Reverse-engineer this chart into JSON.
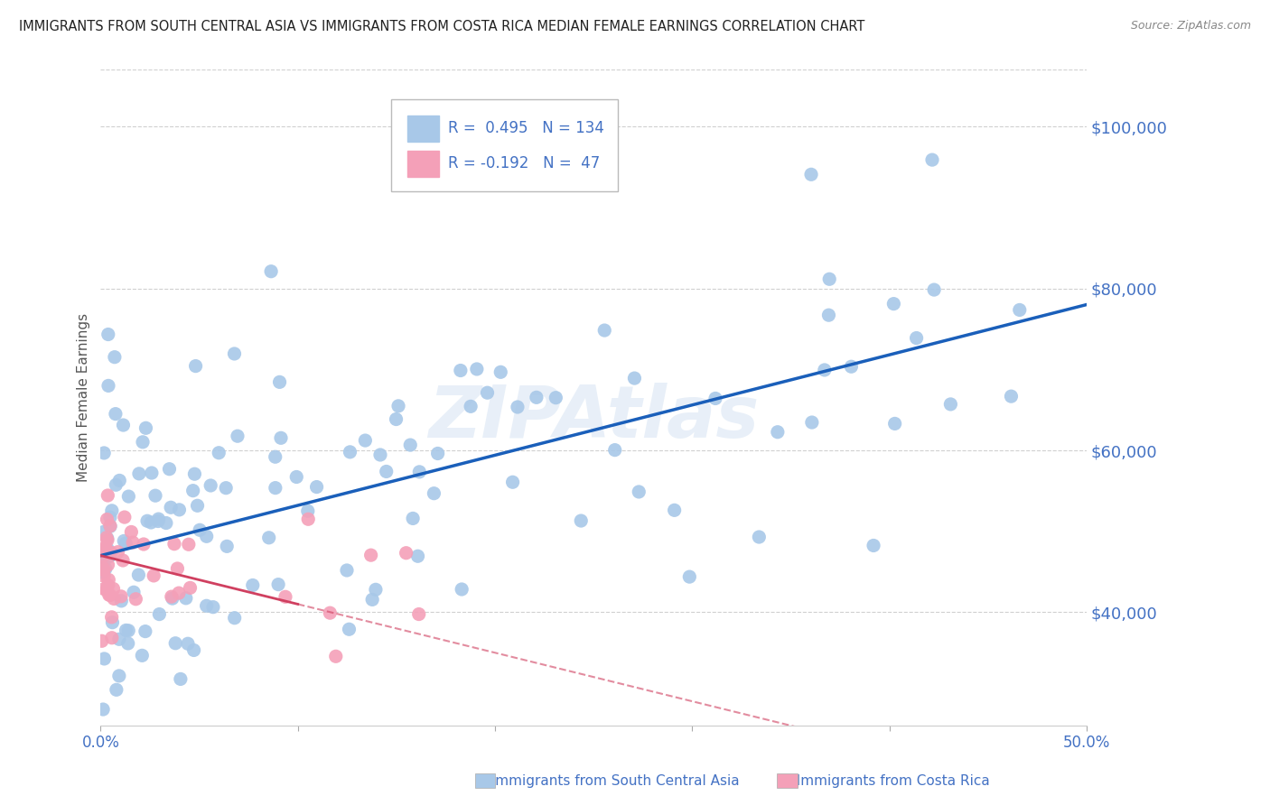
{
  "title": "IMMIGRANTS FROM SOUTH CENTRAL ASIA VS IMMIGRANTS FROM COSTA RICA MEDIAN FEMALE EARNINGS CORRELATION CHART",
  "source": "Source: ZipAtlas.com",
  "ylabel": "Median Female Earnings",
  "right_yticks": [
    40000,
    60000,
    80000,
    100000
  ],
  "right_ytick_labels": [
    "$40,000",
    "$60,000",
    "$80,000",
    "$100,000"
  ],
  "xmin": 0.0,
  "xmax": 0.5,
  "ymin": 26000,
  "ymax": 107000,
  "watermark": "ZIPAtlas",
  "legend_r1": "0.495",
  "legend_n1": "134",
  "legend_r2": "-0.192",
  "legend_n2": "47",
  "series1_color": "#a8c8e8",
  "series2_color": "#f4a0b8",
  "trendline1_color": "#1a5fba",
  "trendline2_color": "#d04060",
  "background_color": "#ffffff",
  "title_color": "#222222",
  "axis_label_color": "#4472c4",
  "grid_color": "#d0d0d0",
  "bottom_legend1": "Immigrants from South Central Asia",
  "bottom_legend2": "Immigrants from Costa Rica"
}
